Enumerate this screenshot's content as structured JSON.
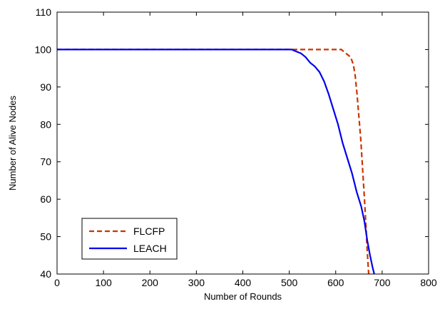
{
  "chart_data": {
    "type": "line",
    "xlabel": "Number of Rounds",
    "ylabel": "Number of Alive Nodes",
    "xlim": [
      0,
      800
    ],
    "ylim": [
      40,
      110
    ],
    "xticks": [
      0,
      100,
      200,
      300,
      400,
      500,
      600,
      700,
      800
    ],
    "yticks": [
      40,
      50,
      60,
      70,
      80,
      90,
      100,
      110
    ],
    "grid": false,
    "legend": "bottom-left",
    "series": [
      {
        "name": "FLCFP",
        "color": "#cc3300",
        "style": "dashed",
        "points": [
          [
            0,
            100
          ],
          [
            510,
            100
          ],
          [
            600,
            100
          ],
          [
            612,
            100
          ],
          [
            622,
            99
          ],
          [
            632,
            98
          ],
          [
            638,
            96
          ],
          [
            642,
            93
          ],
          [
            646,
            88
          ],
          [
            650,
            82
          ],
          [
            654,
            76
          ],
          [
            658,
            68
          ],
          [
            662,
            60
          ],
          [
            665,
            53
          ],
          [
            668,
            46
          ],
          [
            671,
            40
          ]
        ]
      },
      {
        "name": "LEACH",
        "color": "#0000ee",
        "style": "solid",
        "points": [
          [
            0,
            100
          ],
          [
            505,
            100
          ],
          [
            515,
            99.5
          ],
          [
            525,
            99
          ],
          [
            535,
            98
          ],
          [
            545,
            96.5
          ],
          [
            555,
            95.5
          ],
          [
            565,
            94
          ],
          [
            575,
            91.5
          ],
          [
            585,
            88
          ],
          [
            595,
            84
          ],
          [
            605,
            80
          ],
          [
            615,
            75
          ],
          [
            625,
            71
          ],
          [
            635,
            67
          ],
          [
            645,
            62
          ],
          [
            655,
            58
          ],
          [
            662,
            54
          ],
          [
            668,
            49
          ],
          [
            674,
            45
          ],
          [
            679,
            42
          ],
          [
            683,
            40
          ]
        ]
      }
    ]
  }
}
